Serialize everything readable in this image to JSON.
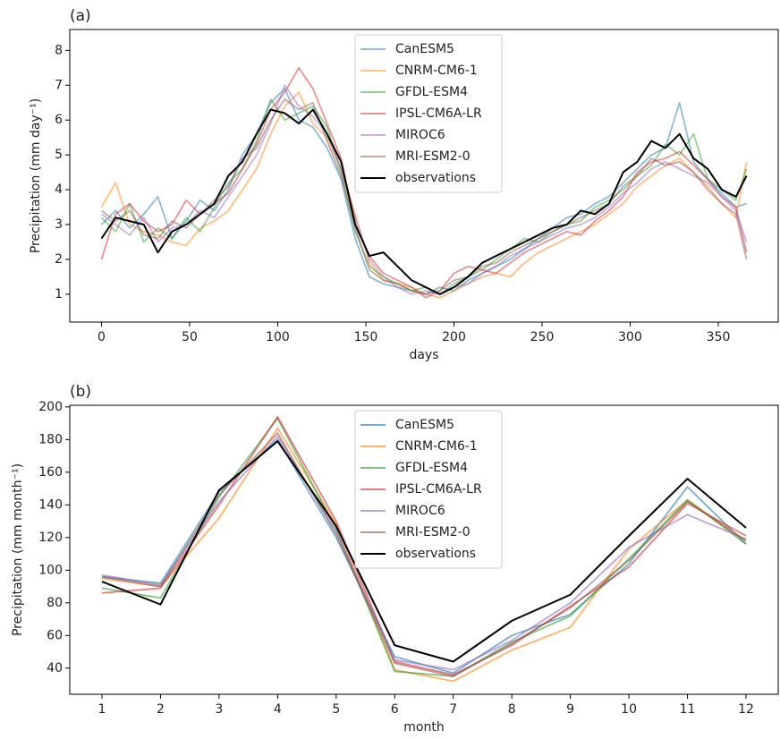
{
  "chart_data": [
    {
      "type": "line",
      "title": "(a)",
      "xlabel": "days",
      "ylabel": "Precipitation (mm day⁻¹)",
      "x": [
        0,
        8,
        16,
        24,
        32,
        40,
        48,
        56,
        64,
        72,
        80,
        88,
        96,
        104,
        112,
        120,
        128,
        136,
        144,
        152,
        160,
        168,
        176,
        184,
        192,
        200,
        208,
        216,
        224,
        232,
        240,
        248,
        256,
        264,
        272,
        280,
        288,
        296,
        304,
        312,
        320,
        328,
        336,
        344,
        352,
        360,
        366
      ],
      "series": [
        {
          "name": "CanESM5",
          "color": "#1f77b4",
          "values": [
            3.0,
            3.4,
            2.9,
            3.3,
            3.8,
            2.6,
            3.1,
            3.7,
            3.4,
            4.0,
            5.0,
            5.6,
            6.5,
            6.9,
            6.0,
            5.8,
            5.2,
            4.3,
            2.6,
            1.5,
            1.3,
            1.2,
            1.1,
            1.0,
            1.2,
            1.1,
            1.4,
            1.6,
            1.8,
            2.0,
            2.3,
            2.6,
            2.9,
            3.2,
            3.3,
            3.6,
            3.8,
            4.2,
            4.6,
            5.0,
            5.2,
            6.5,
            4.8,
            4.3,
            3.9,
            3.5,
            3.6
          ]
        },
        {
          "name": "CNRM-CM6-1",
          "color": "#ff7f0e",
          "values": [
            3.5,
            4.2,
            3.0,
            2.8,
            2.7,
            2.5,
            2.4,
            2.9,
            3.1,
            3.4,
            4.0,
            4.6,
            5.6,
            6.4,
            6.8,
            5.9,
            5.5,
            4.6,
            3.3,
            1.9,
            1.4,
            1.3,
            1.2,
            1.0,
            0.9,
            1.1,
            1.3,
            1.5,
            1.6,
            1.5,
            1.9,
            2.2,
            2.4,
            2.6,
            2.8,
            3.0,
            3.3,
            3.6,
            4.1,
            4.4,
            4.7,
            4.9,
            4.5,
            4.1,
            3.6,
            3.2,
            4.8
          ]
        },
        {
          "name": "GFDL-ESM4",
          "color": "#2ca02c",
          "values": [
            3.2,
            2.8,
            3.6,
            2.5,
            2.9,
            2.6,
            3.2,
            2.8,
            3.5,
            4.2,
            4.6,
            5.4,
            6.6,
            6.0,
            6.2,
            6.4,
            5.8,
            4.5,
            2.8,
            1.8,
            1.5,
            1.3,
            1.1,
            1.2,
            1.0,
            1.3,
            1.5,
            1.7,
            2.0,
            2.3,
            2.6,
            2.5,
            2.8,
            3.0,
            3.1,
            3.5,
            3.7,
            4.0,
            4.4,
            4.7,
            5.3,
            5.0,
            5.6,
            4.3,
            4.0,
            3.7,
            4.6
          ]
        },
        {
          "name": "IPSL-CM6A-LR",
          "color": "#d62728",
          "values": [
            2.0,
            3.3,
            3.6,
            3.1,
            2.8,
            3.0,
            3.7,
            3.3,
            3.6,
            3.9,
            4.6,
            5.3,
            6.3,
            6.8,
            7.5,
            6.9,
            5.9,
            4.9,
            3.0,
            2.1,
            1.6,
            1.4,
            1.2,
            0.9,
            1.1,
            1.6,
            1.8,
            1.7,
            1.6,
            1.9,
            2.2,
            2.4,
            2.6,
            2.8,
            2.7,
            3.1,
            3.4,
            3.8,
            4.5,
            4.8,
            4.9,
            5.1,
            4.7,
            4.3,
            3.8,
            3.5,
            2.2
          ]
        },
        {
          "name": "MIROC6",
          "color": "#9467bd",
          "values": [
            3.3,
            3.0,
            2.7,
            3.2,
            2.5,
            2.9,
            3.0,
            3.4,
            3.2,
            3.8,
            4.4,
            5.0,
            5.9,
            7.0,
            6.4,
            6.1,
            5.6,
            4.6,
            3.2,
            2.0,
            1.5,
            1.2,
            1.0,
            1.1,
            1.0,
            1.2,
            1.3,
            1.6,
            1.8,
            2.1,
            2.3,
            2.5,
            2.7,
            2.9,
            3.0,
            3.2,
            3.5,
            3.9,
            4.2,
            4.6,
            4.8,
            4.6,
            4.4,
            4.2,
            3.8,
            3.4,
            2.5
          ]
        },
        {
          "name": "MRI-ESM2-0",
          "color": "#8c564b",
          "values": [
            3.4,
            3.1,
            3.4,
            2.7,
            2.6,
            3.1,
            2.9,
            3.3,
            3.7,
            4.1,
            4.9,
            5.2,
            6.0,
            6.6,
            6.3,
            6.5,
            5.4,
            4.4,
            2.9,
            1.7,
            1.4,
            1.3,
            1.1,
            1.0,
            1.1,
            1.4,
            1.5,
            1.8,
            1.9,
            2.2,
            2.4,
            2.6,
            2.8,
            3.0,
            3.2,
            3.4,
            3.6,
            4.1,
            4.4,
            4.9,
            4.7,
            4.8,
            4.5,
            4.0,
            3.6,
            3.3,
            2.0
          ]
        },
        {
          "name": "observations",
          "color": "#000000",
          "values": [
            2.6,
            3.2,
            3.1,
            3.0,
            2.2,
            2.8,
            3.0,
            3.3,
            3.6,
            4.4,
            4.8,
            5.6,
            6.3,
            6.2,
            5.9,
            6.3,
            5.6,
            4.8,
            3.0,
            2.1,
            2.2,
            1.8,
            1.4,
            1.2,
            1.0,
            1.2,
            1.5,
            1.9,
            2.1,
            2.3,
            2.5,
            2.7,
            2.9,
            3.0,
            3.4,
            3.3,
            3.6,
            4.5,
            4.8,
            5.4,
            5.2,
            5.6,
            4.9,
            4.6,
            4.0,
            3.8,
            4.4
          ]
        }
      ],
      "xlim": [
        -18,
        384
      ],
      "xticks": [
        0,
        50,
        100,
        150,
        200,
        250,
        300,
        350
      ],
      "ylim": [
        0.2,
        8.6
      ],
      "yticks": [
        1,
        2,
        3,
        4,
        5,
        6,
        7,
        8
      ],
      "legend": "upper center"
    },
    {
      "type": "line",
      "title": "(b)",
      "xlabel": "month",
      "ylabel": "Precipitation (mm month⁻¹)",
      "x": [
        1,
        2,
        3,
        4,
        5,
        6,
        7,
        8,
        9,
        10,
        11,
        12
      ],
      "series": [
        {
          "name": "CanESM5",
          "color": "#1f77b4",
          "values": [
            96,
            92,
            148,
            180,
            120,
            47,
            37,
            60,
            73,
            104,
            151,
            116
          ]
        },
        {
          "name": "CNRM-CM6-1",
          "color": "#ff7f0e",
          "values": [
            95,
            90,
            132,
            187,
            128,
            39,
            32,
            51,
            65,
            113,
            143,
            118
          ]
        },
        {
          "name": "GFDL-ESM4",
          "color": "#2ca02c",
          "values": [
            89,
            83,
            145,
            193,
            125,
            38,
            35,
            56,
            72,
            107,
            143,
            116
          ]
        },
        {
          "name": "IPSL-CM6A-LR",
          "color": "#d62728",
          "values": [
            86,
            89,
            140,
            194,
            130,
            44,
            36,
            54,
            78,
            102,
            141,
            121
          ]
        },
        {
          "name": "MIROC6",
          "color": "#9467bd",
          "values": [
            97,
            91,
            142,
            182,
            124,
            45,
            39,
            57,
            80,
            114,
            134,
            119
          ]
        },
        {
          "name": "MRI-ESM2-0",
          "color": "#8c564b",
          "values": [
            96,
            90,
            146,
            184,
            122,
            43,
            35,
            55,
            77,
            106,
            142,
            118
          ]
        },
        {
          "name": "observations",
          "color": "#000000",
          "values": [
            93,
            79,
            149,
            179,
            127,
            54,
            44,
            69,
            85,
            121,
            156,
            126
          ]
        }
      ],
      "xlim": [
        0.45,
        12.55
      ],
      "xticks": [
        1,
        2,
        3,
        4,
        5,
        6,
        7,
        8,
        9,
        10,
        11,
        12
      ],
      "ylim": [
        24,
        201
      ],
      "yticks": [
        40,
        60,
        80,
        100,
        120,
        140,
        160,
        180,
        200
      ],
      "legend": "upper center"
    }
  ]
}
